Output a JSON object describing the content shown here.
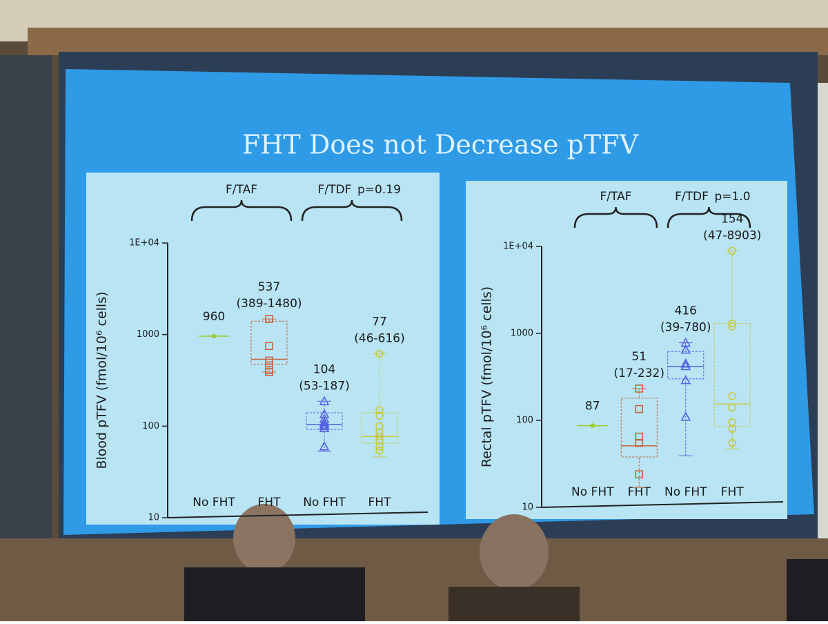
{
  "slide_title": "FHT Does not Decrease pTFV",
  "chart_data": [
    {
      "type": "box",
      "ylabel": "Blood pTFV (fmol/10⁶ cells)",
      "log_scale": true,
      "ylim": [
        10,
        10000
      ],
      "yticks": [
        10,
        100,
        1000,
        {
          "value": 10000,
          "label": "1E+04"
        }
      ],
      "categories": [
        "No FHT",
        "FHT",
        "No FHT",
        "FHT"
      ],
      "groups": [
        "F/TAF",
        "F/TDF"
      ],
      "p_value_label": "p=0.19",
      "boxes": [
        {
          "median": 960,
          "color": "#9acd32",
          "marker": "dash"
        },
        {
          "median": 537,
          "range": [
            389,
            1480
          ],
          "range_label": "(389-1480)",
          "q1": 470,
          "q3": 1400,
          "points": [
            1480,
            750,
            520,
            460,
            410,
            389
          ],
          "color": "#c8643c",
          "marker": "square"
        },
        {
          "median": 104,
          "range": [
            53,
            187
          ],
          "range_label": "(53-187)",
          "q1": 92,
          "q3": 140,
          "points": [
            187,
            135,
            120,
            110,
            104,
            100,
            95,
            60
          ],
          "color": "#5560e0",
          "marker": "triangle"
        },
        {
          "median": 77,
          "range": [
            46,
            616
          ],
          "range_label": "(46-616)",
          "q1": 65,
          "q3": 140,
          "points": [
            616,
            150,
            130,
            100,
            85,
            77,
            70,
            60,
            54
          ],
          "color": "#c8c840",
          "marker": "circle"
        }
      ]
    },
    {
      "type": "box",
      "ylabel": "Rectal pTFV (fmol/10⁶ cells)",
      "log_scale": true,
      "ylim": [
        10,
        10000
      ],
      "yticks": [
        10,
        100,
        1000,
        {
          "value": 10000,
          "label": "1E+04"
        }
      ],
      "categories": [
        "No FHT",
        "FHT",
        "No FHT",
        "FHT"
      ],
      "groups": [
        "F/TAF",
        "F/TDF"
      ],
      "p_value_label": "p=1.0",
      "boxes": [
        {
          "median": 87,
          "color": "#9acd32",
          "marker": "dash"
        },
        {
          "median": 51,
          "range": [
            17,
            232
          ],
          "range_label": "(17-232)",
          "q1": 38,
          "q3": 180,
          "points": [
            232,
            135,
            65,
            55,
            24
          ],
          "color": "#c8643c",
          "marker": "square"
        },
        {
          "median": 416,
          "range": [
            39,
            780
          ],
          "range_label": "(39-780)",
          "q1": 300,
          "q3": 620,
          "points": [
            780,
            650,
            450,
            420,
            290,
            110
          ],
          "color": "#5560e0",
          "marker": "triangle"
        },
        {
          "median": 154,
          "range": [
            47,
            8903
          ],
          "range_label": "(47-8903)",
          "q1": 85,
          "q3": 1300,
          "points": [
            8903,
            1300,
            1200,
            190,
            140,
            95,
            80,
            55
          ],
          "color": "#c8c840",
          "marker": "circle"
        }
      ]
    }
  ]
}
